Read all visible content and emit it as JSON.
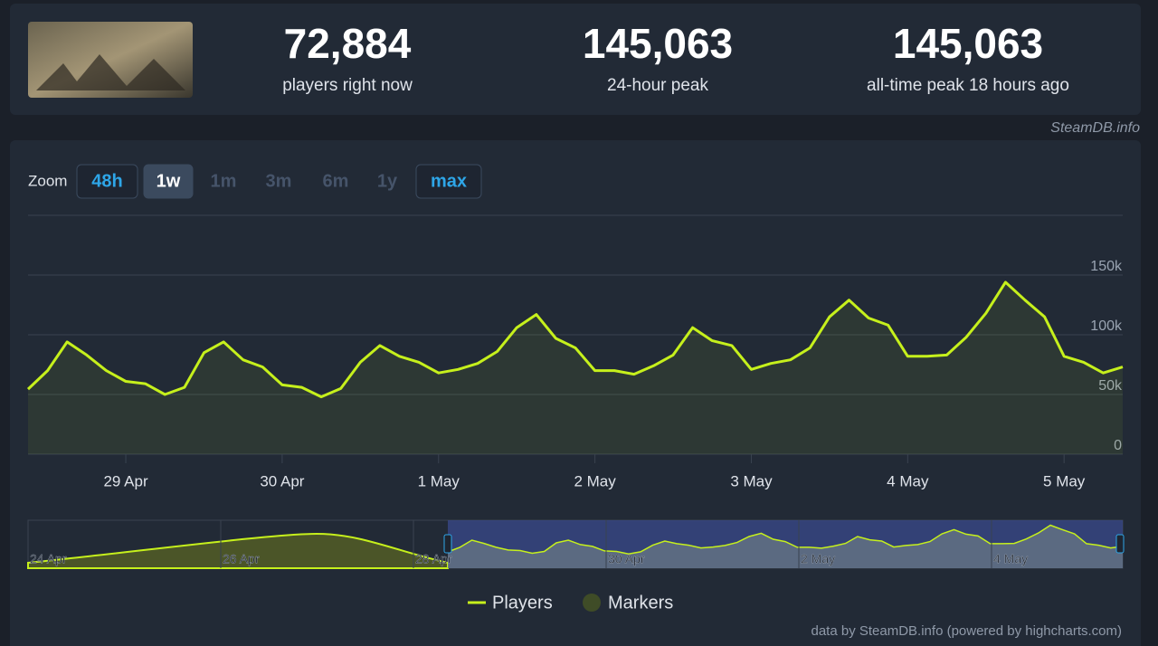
{
  "header": {
    "stats": [
      {
        "value": "72,884",
        "label": "players right now"
      },
      {
        "value": "145,063",
        "label": "24-hour peak"
      },
      {
        "value": "145,063",
        "label": "all-time peak 18 hours ago"
      }
    ],
    "credit": "SteamDB.info"
  },
  "zoom": {
    "label": "Zoom",
    "buttons": [
      "48h",
      "1w",
      "1m",
      "3m",
      "6m",
      "1y",
      "max"
    ]
  },
  "navigator": {
    "labels": [
      "24 Apr",
      "26 Apr",
      "28 Apr",
      "30 Apr",
      "2 May",
      "4 May"
    ]
  },
  "footer": "data by SteamDB.info (powered by highcharts.com)",
  "chart_data": {
    "type": "line",
    "categories": [
      null,
      null,
      null,
      null,
      null,
      "29 Apr",
      null,
      null,
      null,
      null,
      null,
      null,
      null,
      "30 Apr",
      null,
      null,
      null,
      null,
      null,
      null,
      null,
      "1 May",
      null,
      null,
      null,
      null,
      null,
      null,
      null,
      "2 May",
      null,
      null,
      null,
      null,
      null,
      null,
      null,
      "3 May",
      null,
      null,
      null,
      null,
      null,
      null,
      null,
      "4 May",
      null,
      null,
      null,
      null,
      null,
      null,
      null,
      "5 May",
      null,
      null,
      null
    ],
    "series": [
      {
        "name": "Players",
        "color": "#c6f01c",
        "values": [
          54500,
          70000,
          94000,
          83000,
          70000,
          61000,
          59000,
          50000,
          56000,
          85000,
          94000,
          79000,
          73000,
          58000,
          56000,
          48000,
          55000,
          77000,
          91000,
          82000,
          77000,
          68000,
          71000,
          76000,
          86000,
          106000,
          117000,
          97000,
          89000,
          70000,
          70000,
          67000,
          74000,
          83000,
          106000,
          95000,
          91000,
          71000,
          76000,
          79000,
          89000,
          115000,
          129000,
          114000,
          108000,
          82000,
          82000,
          83000,
          98000,
          118000,
          144000,
          129000,
          115000,
          82000,
          77000,
          68000,
          73000
        ]
      }
    ],
    "markers_legend": {
      "name": "Markers",
      "color": "#3f4c27"
    },
    "ylim": [
      0,
      200000
    ],
    "yticks": [
      {
        "value": 0,
        "label": "0"
      },
      {
        "value": 50000,
        "label": "50k"
      },
      {
        "value": 100000,
        "label": "100k"
      },
      {
        "value": 150000,
        "label": "150k"
      }
    ],
    "grid": true
  }
}
